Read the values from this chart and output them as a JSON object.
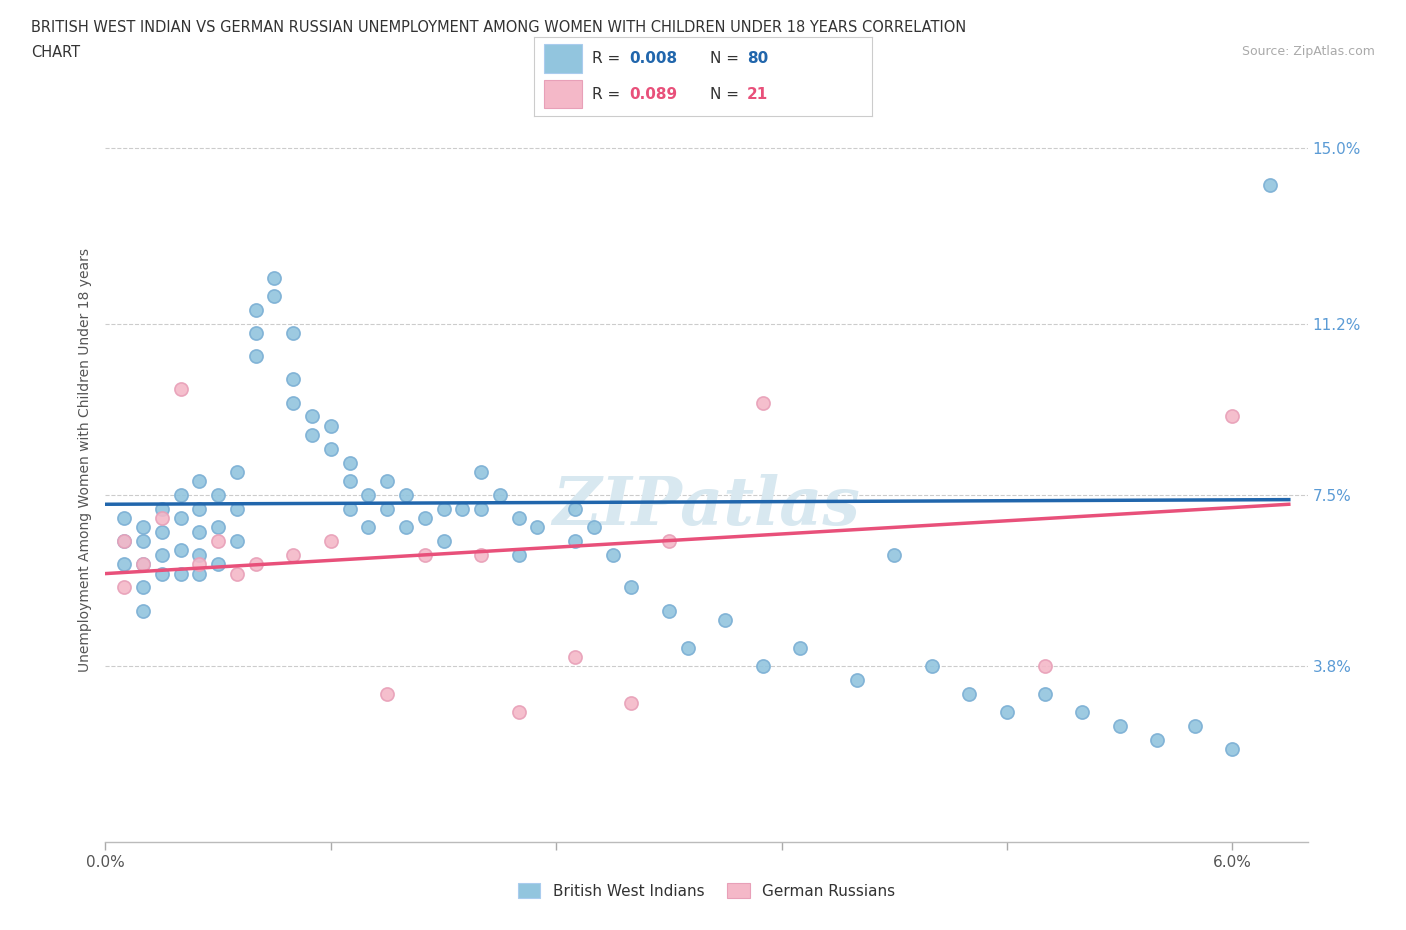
{
  "title_line1": "BRITISH WEST INDIAN VS GERMAN RUSSIAN UNEMPLOYMENT AMONG WOMEN WITH CHILDREN UNDER 18 YEARS CORRELATION",
  "title_line2": "CHART",
  "source": "Source: ZipAtlas.com",
  "ylabel": "Unemployment Among Women with Children Under 18 years",
  "y_ticks": [
    0.0,
    0.038,
    0.075,
    0.112,
    0.15
  ],
  "y_tick_labels": [
    "",
    "3.8%",
    "7.5%",
    "11.2%",
    "15.0%"
  ],
  "xlim": [
    0.0,
    0.064
  ],
  "ylim": [
    0.0,
    0.165
  ],
  "legend_label1": "British West Indians",
  "legend_label2": "German Russians",
  "R1": "0.008",
  "N1": "80",
  "R2": "0.089",
  "N2": "21",
  "color1": "#92c5de",
  "color2": "#f4b8c8",
  "line_color1": "#2166ac",
  "line_color2": "#e8507a",
  "blue_x": [
    0.001,
    0.001,
    0.001,
    0.002,
    0.002,
    0.002,
    0.002,
    0.002,
    0.003,
    0.003,
    0.003,
    0.003,
    0.004,
    0.004,
    0.004,
    0.004,
    0.005,
    0.005,
    0.005,
    0.005,
    0.005,
    0.006,
    0.006,
    0.006,
    0.007,
    0.007,
    0.007,
    0.008,
    0.008,
    0.008,
    0.009,
    0.009,
    0.01,
    0.01,
    0.01,
    0.011,
    0.011,
    0.012,
    0.012,
    0.013,
    0.013,
    0.013,
    0.014,
    0.014,
    0.015,
    0.015,
    0.016,
    0.016,
    0.017,
    0.018,
    0.018,
    0.019,
    0.02,
    0.02,
    0.021,
    0.022,
    0.022,
    0.023,
    0.025,
    0.025,
    0.026,
    0.027,
    0.028,
    0.03,
    0.031,
    0.033,
    0.035,
    0.037,
    0.04,
    0.042,
    0.044,
    0.046,
    0.048,
    0.05,
    0.052,
    0.054,
    0.056,
    0.058,
    0.06,
    0.062
  ],
  "blue_y": [
    0.07,
    0.065,
    0.06,
    0.068,
    0.065,
    0.06,
    0.055,
    0.05,
    0.072,
    0.067,
    0.062,
    0.058,
    0.075,
    0.07,
    0.063,
    0.058,
    0.078,
    0.072,
    0.067,
    0.062,
    0.058,
    0.075,
    0.068,
    0.06,
    0.08,
    0.072,
    0.065,
    0.115,
    0.11,
    0.105,
    0.122,
    0.118,
    0.11,
    0.1,
    0.095,
    0.092,
    0.088,
    0.09,
    0.085,
    0.082,
    0.078,
    0.072,
    0.075,
    0.068,
    0.078,
    0.072,
    0.075,
    0.068,
    0.07,
    0.072,
    0.065,
    0.072,
    0.08,
    0.072,
    0.075,
    0.07,
    0.062,
    0.068,
    0.072,
    0.065,
    0.068,
    0.062,
    0.055,
    0.05,
    0.042,
    0.048,
    0.038,
    0.042,
    0.035,
    0.062,
    0.038,
    0.032,
    0.028,
    0.032,
    0.028,
    0.025,
    0.022,
    0.025,
    0.02,
    0.142
  ],
  "pink_x": [
    0.001,
    0.001,
    0.002,
    0.003,
    0.004,
    0.005,
    0.006,
    0.007,
    0.008,
    0.01,
    0.012,
    0.015,
    0.017,
    0.02,
    0.022,
    0.025,
    0.028,
    0.03,
    0.035,
    0.05,
    0.06
  ],
  "pink_y": [
    0.065,
    0.055,
    0.06,
    0.07,
    0.098,
    0.06,
    0.065,
    0.058,
    0.06,
    0.062,
    0.065,
    0.032,
    0.062,
    0.062,
    0.028,
    0.04,
    0.03,
    0.065,
    0.095,
    0.038,
    0.092
  ],
  "blue_line_x": [
    0.0,
    0.063
  ],
  "blue_line_y": [
    0.073,
    0.074
  ],
  "pink_line_x": [
    0.0,
    0.063
  ],
  "pink_line_y": [
    0.058,
    0.073
  ]
}
